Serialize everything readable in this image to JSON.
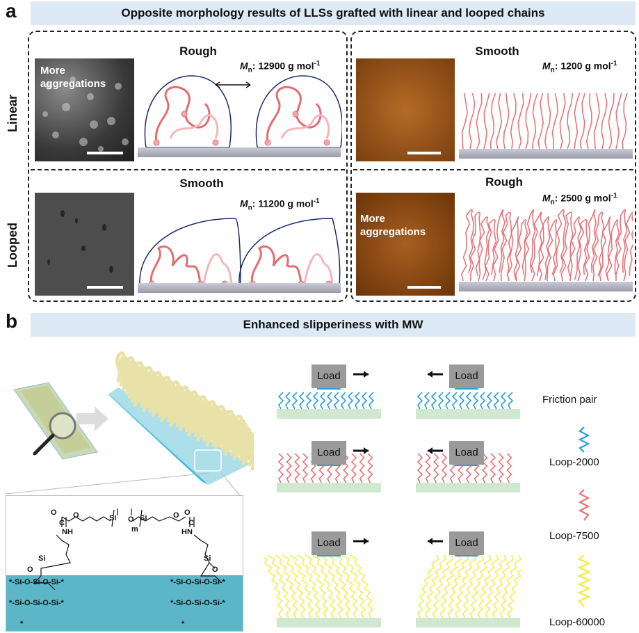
{
  "panel_a": {
    "letter": "a",
    "header": "Opposite morphology results of LLSs grafted with linear and looped chains",
    "row_labels": {
      "linear": "Linear",
      "looped": "Looped"
    },
    "left": {
      "linear": {
        "morphology": "Rough",
        "image_label": "More aggregations",
        "mn_prefix": "M",
        "mn_sub": "n",
        "mn_value": ": 12900 g mol",
        "mn_sup": "-1"
      },
      "looped": {
        "morphology": "Smooth",
        "mn_prefix": "M",
        "mn_sub": "n",
        "mn_value": ": 11200 g mol",
        "mn_sup": "-1"
      }
    },
    "right": {
      "linear": {
        "morphology": "Smooth",
        "mn_prefix": "M",
        "mn_sub": "n",
        "mn_value": ": 1200 g mol",
        "mn_sup": "-1"
      },
      "looped": {
        "morphology": "Rough",
        "image_label": "More aggregations",
        "mn_prefix": "M",
        "mn_sub": "n",
        "mn_value": ": 2500 g mol",
        "mn_sup": "-1"
      }
    }
  },
  "panel_b": {
    "letter": "b",
    "header": "Enhanced slipperiness with MW",
    "load_label": "Load",
    "legend": {
      "title": "Friction pair",
      "items": [
        {
          "label": "Loop-2000",
          "color": "#2a9fd8"
        },
        {
          "label": "Loop-7500",
          "color": "#e8737a"
        },
        {
          "label": "Loop-60000",
          "color": "#f2ee4a"
        }
      ]
    },
    "chem": {
      "carbonyl_o_left": "O",
      "carbonyl_o_right": "O",
      "c_left": "C",
      "c_right": "C",
      "ester_o_left": "O",
      "ester_o_right": "O",
      "nh_left": "NH",
      "nh_right": "HN",
      "si_main": "Si",
      "o_bridge": "O",
      "si_main2": "Si",
      "m_subscript": "m",
      "si_anchor_left": "Si",
      "si_anchor_right": "Si",
      "surface_row1": "*-Si-O-Si-O-Si-*",
      "surface_row2": "*-Si-O-Si-O-Si-*",
      "o_label": "O",
      "star": "*"
    }
  },
  "colors": {
    "header_bg": "#dde9f4",
    "blue_chain": "#2a9fd8",
    "red_chain": "#e8737a",
    "yellow_chain": "#f2ee4a",
    "substrate_green": "#cfe8cf",
    "teal_surface": "#5bb6c8",
    "sem_gray": "#555555",
    "afm_brown": "#9a5a1c"
  }
}
